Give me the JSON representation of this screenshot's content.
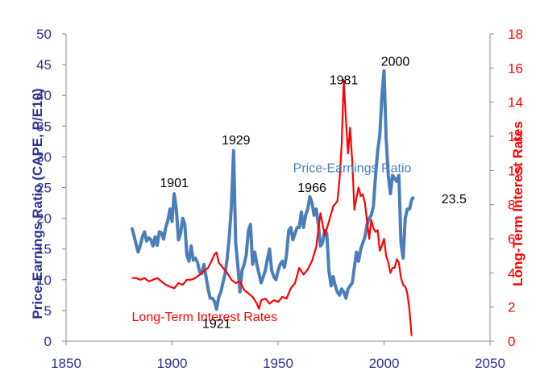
{
  "chart_data": {
    "type": "line",
    "title": "",
    "xlabel": "",
    "ylabel_left": "Price-Earnings Ratio (CAPE, P/E10)",
    "ylabel_right": "Long-Term Interest Rates",
    "xlim": [
      1850,
      2050
    ],
    "ylim_left": [
      0,
      50
    ],
    "ylim_right": [
      0,
      18
    ],
    "x_ticks": [
      "1850",
      "1900",
      "1950",
      "2000",
      "2050"
    ],
    "y_left_ticks": [
      "0",
      "5",
      "10",
      "15",
      "20",
      "25",
      "30",
      "35",
      "40",
      "45",
      "50"
    ],
    "y_right_ticks": [
      "0",
      "2",
      "4",
      "6",
      "8",
      "10",
      "12",
      "14",
      "16",
      "18"
    ],
    "grid": false,
    "series": [
      {
        "name": "Price-Earnings Ratio",
        "axis": "left",
        "color": "#4A7EBB",
        "x": [
          1881,
          1882,
          1883,
          1884,
          1885,
          1886,
          1887,
          1888,
          1889,
          1890,
          1891,
          1892,
          1893,
          1894,
          1895,
          1896,
          1897,
          1898,
          1899,
          1900,
          1901,
          1902,
          1903,
          1904,
          1905,
          1906,
          1907,
          1908,
          1909,
          1910,
          1911,
          1912,
          1913,
          1914,
          1915,
          1916,
          1917,
          1918,
          1919,
          1920,
          1921,
          1922,
          1923,
          1924,
          1925,
          1926,
          1927,
          1928,
          1929,
          1930,
          1931,
          1932,
          1933,
          1934,
          1935,
          1936,
          1937,
          1938,
          1939,
          1940,
          1941,
          1942,
          1943,
          1944,
          1945,
          1946,
          1947,
          1948,
          1949,
          1950,
          1951,
          1952,
          1953,
          1954,
          1955,
          1956,
          1957,
          1958,
          1959,
          1960,
          1961,
          1962,
          1963,
          1964,
          1965,
          1966,
          1967,
          1968,
          1969,
          1970,
          1971,
          1972,
          1973,
          1974,
          1975,
          1976,
          1977,
          1978,
          1979,
          1980,
          1981,
          1982,
          1983,
          1984,
          1985,
          1986,
          1987,
          1988,
          1989,
          1990,
          1991,
          1992,
          1993,
          1994,
          1995,
          1996,
          1997,
          1998,
          1999,
          2000,
          2001,
          2002,
          2003,
          2004,
          2005,
          2006,
          2007,
          2008,
          2009,
          2010,
          2011,
          2012,
          2013,
          2014
        ],
        "values": [
          18.5,
          17.2,
          15.8,
          14.5,
          15.6,
          17.0,
          17.8,
          16.3,
          16.8,
          16.5,
          15.5,
          17.0,
          15.6,
          17.8,
          17.6,
          16.6,
          18.5,
          19.6,
          21.5,
          19.5,
          24.0,
          21.5,
          16.5,
          17.5,
          20.0,
          19.0,
          14.0,
          13.0,
          15.5,
          13.2,
          13.5,
          12.8,
          11.3,
          11.0,
          12.5,
          10.5,
          8.5,
          7.0,
          7.0,
          6.5,
          5.2,
          7.2,
          8.0,
          9.5,
          11.0,
          13.5,
          17.0,
          22.0,
          31.0,
          16.0,
          12.5,
          8.0,
          11.5,
          12.5,
          14.0,
          18.0,
          19.0,
          12.5,
          14.5,
          12.5,
          11.0,
          9.5,
          10.5,
          11.5,
          13.5,
          15.0,
          11.5,
          10.5,
          10.0,
          11.5,
          12.5,
          13.0,
          12.0,
          14.0,
          18.0,
          18.5,
          16.5,
          17.5,
          18.5,
          18.5,
          21.0,
          18.5,
          20.5,
          21.5,
          23.5,
          22.5,
          20.5,
          21.5,
          19.0,
          15.5,
          16.0,
          18.0,
          17.5,
          11.5,
          9.0,
          10.5,
          9.0,
          8.0,
          7.5,
          8.5,
          8.0,
          7.0,
          8.5,
          9.0,
          9.5,
          12.0,
          14.5,
          13.0,
          15.0,
          16.0,
          17.0,
          19.0,
          20.0,
          20.5,
          22.0,
          27.0,
          31.0,
          33.5,
          40.0,
          44.0,
          33.0,
          27.0,
          24.0,
          27.0,
          26.5,
          26.0,
          27.0,
          16.0,
          13.5,
          20.0,
          21.5,
          21.5,
          23.0,
          23.5
        ]
      },
      {
        "name": "Long-Term Interest Rates",
        "axis": "right",
        "color": "#FF0000",
        "x": [
          1881,
          1883,
          1885,
          1887,
          1889,
          1891,
          1893,
          1895,
          1897,
          1899,
          1901,
          1903,
          1905,
          1907,
          1909,
          1911,
          1913,
          1915,
          1917,
          1919,
          1920,
          1921,
          1922,
          1924,
          1926,
          1928,
          1930,
          1932,
          1934,
          1936,
          1938,
          1940,
          1941,
          1942,
          1944,
          1946,
          1948,
          1950,
          1952,
          1954,
          1956,
          1958,
          1960,
          1962,
          1964,
          1966,
          1968,
          1970,
          1972,
          1974,
          1976,
          1978,
          1979,
          1980,
          1981,
          1982,
          1983,
          1984,
          1985,
          1986,
          1987,
          1988,
          1989,
          1990,
          1991,
          1992,
          1993,
          1994,
          1995,
          1996,
          1997,
          1998,
          1999,
          2000,
          2001,
          2002,
          2003,
          2004,
          2005,
          2006,
          2007,
          2008,
          2009,
          2010,
          2011,
          2012,
          2013
        ],
        "values": [
          3.7,
          3.7,
          3.6,
          3.7,
          3.5,
          3.6,
          3.7,
          3.5,
          3.3,
          3.2,
          3.1,
          3.4,
          3.3,
          3.6,
          3.6,
          3.7,
          3.9,
          4.1,
          4.3,
          4.8,
          5.1,
          5.2,
          4.6,
          4.3,
          4.0,
          3.6,
          3.4,
          3.5,
          3.0,
          2.8,
          2.6,
          2.2,
          1.9,
          2.4,
          2.5,
          2.2,
          2.4,
          2.3,
          2.6,
          2.5,
          3.1,
          3.4,
          4.3,
          3.9,
          4.2,
          4.7,
          5.5,
          7.5,
          6.2,
          7.0,
          7.9,
          8.2,
          9.5,
          11.5,
          15.3,
          13.0,
          11.0,
          12.5,
          10.5,
          7.7,
          8.4,
          9.0,
          8.5,
          8.6,
          8.1,
          7.0,
          6.0,
          7.1,
          6.6,
          6.4,
          6.5,
          5.3,
          5.6,
          6.0,
          5.0,
          4.6,
          4.0,
          4.3,
          4.3,
          4.8,
          4.6,
          3.7,
          3.3,
          3.2,
          2.8,
          1.8,
          0.3
        ]
      }
    ],
    "annotations": [
      {
        "text": "1901",
        "x": 1901,
        "y": 24.0
      },
      {
        "text": "1921",
        "x": 1921,
        "y": 5.2
      },
      {
        "text": "1929",
        "x": 1929,
        "y": 31.0
      },
      {
        "text": "1966",
        "x": 1966,
        "y": 23.5
      },
      {
        "text": "1981",
        "x": 1981,
        "y": 41.0
      },
      {
        "text": "2000",
        "x": 2000,
        "y": 44.0
      },
      {
        "text": "23.5",
        "x": 2014,
        "y": 23.5
      }
    ],
    "series_labels": {
      "pe": "Price-Earnings Ratio",
      "lt": "Long-Term Interest Rates"
    }
  }
}
